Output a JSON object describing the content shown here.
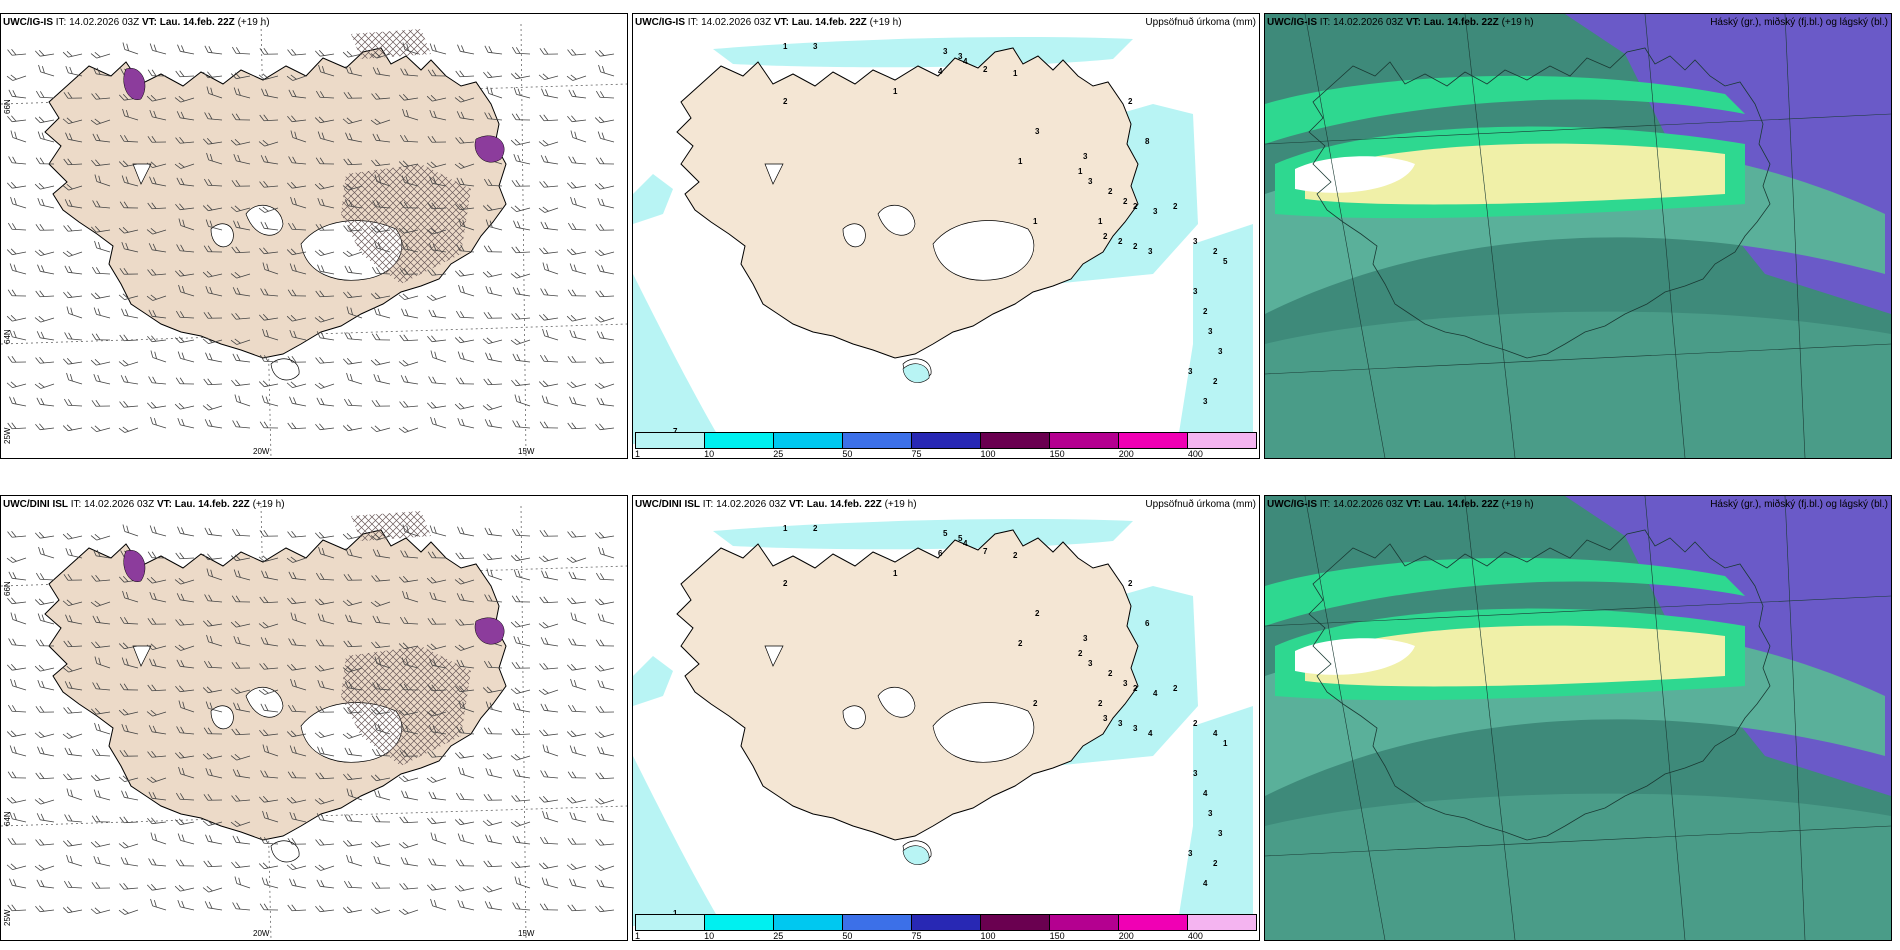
{
  "colors": {
    "land": "#f4e6d4",
    "land_left": "#ecdac8",
    "precip_light": "#b8f4f4",
    "hatch": "#6a5a5a",
    "cloud_high": "#6a5ac8",
    "cloud_mid_dark": "#3e8a7a",
    "cloud_mid": "#5ab09a",
    "cloud_green": "#2ed890",
    "cloud_yellow": "#f0f0a8"
  },
  "rows": [
    {
      "wind_title": {
        "model": "UWC/IG-IS",
        "it": "IT: 14.02.2026 03Z",
        "vt_label": "VT:",
        "vt": "Lau. 14.feb. 22Z",
        "lead": "(+19 h)"
      },
      "precip_title": {
        "model": "UWC/IG-IS",
        "it": "IT: 14.02.2026 03Z",
        "vt_label": "VT:",
        "vt": "Lau. 14.feb. 22Z",
        "lead": "(+19 h)",
        "right": "Uppsöfnuð úrkoma (mm)"
      },
      "cloud_title": {
        "model": "UWC/IG-IS",
        "it": "IT: 14.02.2026 03Z",
        "vt_label": "VT:",
        "vt": "Lau. 14.feb. 22Z",
        "lead": "(+19 h)",
        "right": "Háský (gr.), miðský (fj.bl.) og lágský (bl.)"
      }
    },
    {
      "wind_title": {
        "model": "UWC/DINI ISL",
        "it": "IT: 14.02.2026 03Z",
        "vt_label": "VT:",
        "vt": "Lau. 14.feb. 22Z",
        "lead": "(+19 h)"
      },
      "precip_title": {
        "model": "UWC/DINI ISL",
        "it": "IT: 14.02.2026 03Z",
        "vt_label": "VT:",
        "vt": "Lau. 14.feb. 22Z",
        "lead": "(+19 h)",
        "right": "Uppsöfnuð úrkoma (mm)"
      },
      "cloud_title": {
        "model": "UWC/IG-IS",
        "it": "IT: 14.02.2026 03Z",
        "vt_label": "VT:",
        "vt": "Lau. 14.feb. 22Z",
        "lead": "(+19 h)",
        "right": "Háský (gr.), miðský (fj.bl.) og lágský (bl.)"
      }
    }
  ],
  "axis": {
    "lon1": "20W",
    "lon2": "15W",
    "lon_left": "25W",
    "lat_top": "66N",
    "lat_mid": "64N"
  },
  "colorbar": {
    "labels": [
      "1",
      "10",
      "25",
      "50",
      "75",
      "100",
      "150",
      "200",
      "400"
    ],
    "colors": [
      "#b8f4f4",
      "#00f0f0",
      "#00c8f0",
      "#3c70e8",
      "#2828b4",
      "#6a0050",
      "#b40090",
      "#f000b4",
      "#f4b4f0"
    ]
  },
  "precip_numbers": [
    [
      "1",
      "3",
      "3",
      "3",
      "4",
      "2",
      "1",
      "4",
      "1",
      "3",
      "1",
      "2",
      "8",
      "3",
      "1",
      "3",
      "2",
      "2",
      "2",
      "3",
      "2",
      "1",
      "2",
      "2",
      "2",
      "3",
      "3",
      "2",
      "5",
      "3",
      "2",
      "3",
      "3",
      "3",
      "2",
      "3",
      "1",
      "7",
      "2"
    ],
    [
      "1",
      "2",
      "5",
      "5",
      "4",
      "7",
      "2",
      "6",
      "1",
      "2",
      "2",
      "2",
      "6",
      "3",
      "2",
      "3",
      "2",
      "3",
      "2",
      "4",
      "2",
      "2",
      "3",
      "3",
      "3",
      "4",
      "2",
      "4",
      "1",
      "3",
      "4",
      "3",
      "3",
      "3",
      "2",
      "4",
      "2",
      "1",
      "2"
    ]
  ]
}
